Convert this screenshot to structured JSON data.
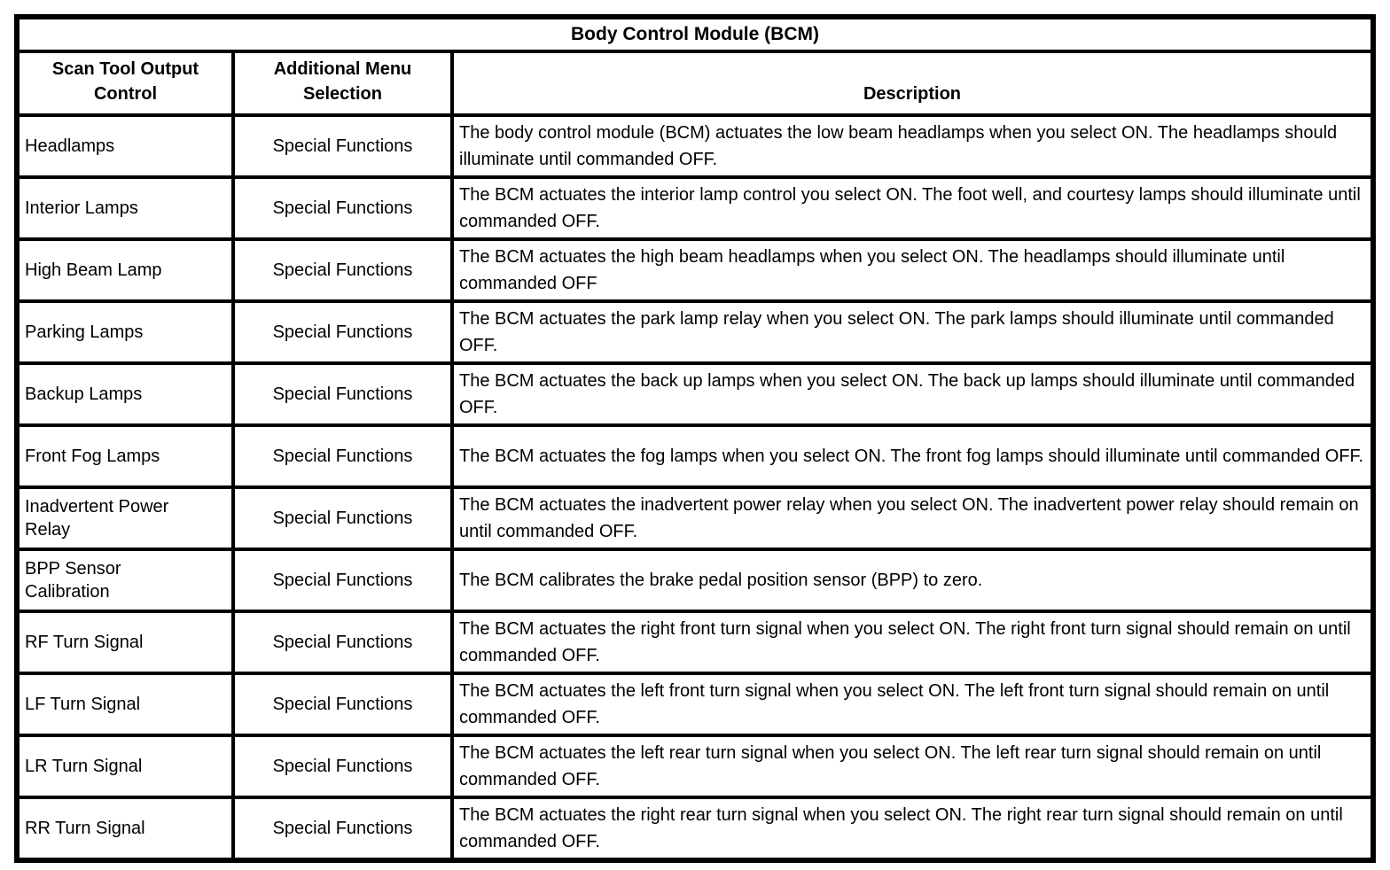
{
  "table": {
    "title": "Body Control Module (BCM)",
    "headers": {
      "control": "Scan Tool Output Control",
      "menu": "Additional Menu Selection",
      "description": "Description"
    },
    "rows": [
      {
        "control": "Headlamps",
        "menu": "Special Functions",
        "description": "The body control module (BCM) actuates the low beam headlamps when you select ON. The headlamps should illuminate until commanded OFF."
      },
      {
        "control": "Interior Lamps",
        "menu": "Special Functions",
        "description": "The BCM actuates the interior lamp control you select ON. The foot well, and courtesy lamps should illuminate until commanded OFF."
      },
      {
        "control": "High Beam Lamp",
        "menu": "Special Functions",
        "description": "The BCM actuates the high beam headlamps when you select ON. The headlamps should illuminate until commanded OFF"
      },
      {
        "control": "Parking Lamps",
        "menu": "Special Functions",
        "description": "The BCM actuates the park lamp relay when you select ON. The park lamps should illuminate until commanded OFF."
      },
      {
        "control": "Backup Lamps",
        "menu": "Special Functions",
        "description": "The BCM actuates the back up lamps when you select ON. The back up lamps should illuminate until commanded OFF."
      },
      {
        "control": "Front Fog Lamps",
        "menu": "Special Functions",
        "description": "The BCM actuates the fog lamps when you select ON. The front fog lamps should illuminate until commanded OFF."
      },
      {
        "control": "Inadvertent Power Relay",
        "menu": "Special Functions",
        "description": "The BCM actuates the inadvertent power relay when you select ON. The inadvertent power relay should remain on until commanded OFF."
      },
      {
        "control": "BPP Sensor Calibration",
        "menu": "Special Functions",
        "description": "The BCM calibrates the brake pedal position sensor (BPP) to zero."
      },
      {
        "control": "RF Turn Signal",
        "menu": "Special Functions",
        "description": "The BCM actuates the right front turn signal when you select ON. The right front turn signal should remain on until commanded OFF."
      },
      {
        "control": "LF Turn Signal",
        "menu": "Special Functions",
        "description": "The BCM actuates the left front turn signal when you select ON. The left front turn signal should remain on until commanded OFF."
      },
      {
        "control": "LR Turn Signal",
        "menu": "Special Functions",
        "description": "The BCM actuates the left rear turn signal when you select ON. The left rear turn signal should remain on until commanded OFF."
      },
      {
        "control": "RR Turn Signal",
        "menu": "Special Functions",
        "description": "The BCM actuates the right rear turn signal when you select ON. The right rear turn signal should remain on until commanded OFF."
      }
    ],
    "colors": {
      "border": "#000000",
      "background": "#ffffff",
      "text": "#000000"
    }
  }
}
